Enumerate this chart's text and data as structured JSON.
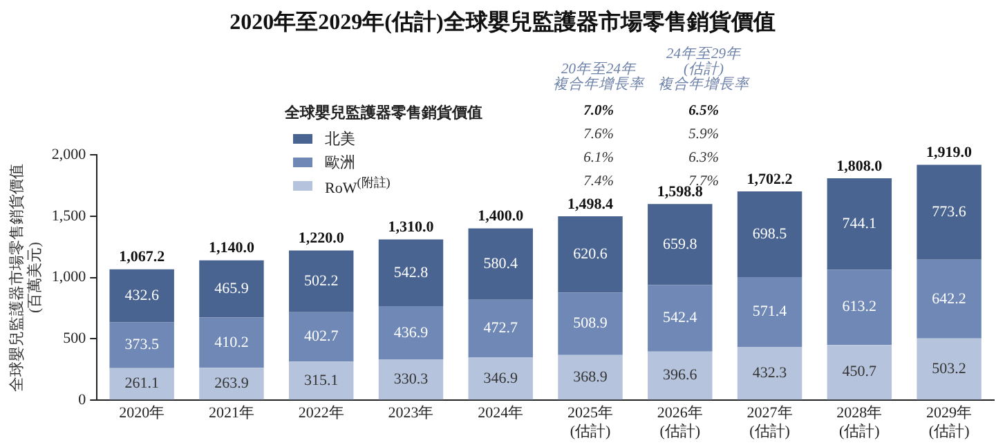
{
  "chart_data": {
    "type": "bar",
    "title": "2020年至2029年(估計)全球嬰兒監護器市場零售銷貨價值",
    "ylabel": "全球嬰兒監護器市場零售銷貨價值\n(百萬美元)",
    "legend_title": "全球嬰兒監護器零售銷貨價值",
    "categories": [
      "2020年",
      "2021年",
      "2022年",
      "2023年",
      "2024年",
      "2025年\n(估計)",
      "2026年\n(估計)",
      "2027年\n(估計)",
      "2028年\n(估計)",
      "2029年\n(估計)"
    ],
    "series": [
      {
        "name": "RoW$^{(附註)}$",
        "color": "#b5c3dc",
        "values": [
          261.1,
          263.9,
          315.1,
          330.3,
          346.9,
          368.9,
          396.6,
          432.3,
          450.7,
          503.2
        ]
      },
      {
        "name": "歐洲",
        "color": "#6f88b6",
        "values": [
          373.5,
          410.2,
          402.7,
          436.9,
          472.7,
          508.9,
          542.4,
          571.4,
          613.2,
          642.2
        ]
      },
      {
        "name": "北美",
        "color": "#4a6491",
        "values": [
          432.6,
          465.9,
          502.2,
          542.8,
          580.4,
          620.6,
          659.8,
          698.5,
          744.1,
          773.6
        ]
      }
    ],
    "stacked": true,
    "totals": [
      "1,067.2",
      "1,140.0",
      "1,220.0",
      "1,310.0",
      "1,400.0",
      "1,498.4",
      "1,598.8",
      "1,702.2",
      "1,808.0",
      "1,919.0"
    ],
    "data_labels": true,
    "ylim": [
      0,
      2000
    ],
    "yticks": [
      0,
      500,
      {
        "value": 1000,
        "label": "1,000"
      },
      {
        "value": 1500,
        "label": "1,500"
      },
      {
        "value": 2000,
        "label": "2,000"
      }
    ],
    "grid": false,
    "legend": "top",
    "annotations": [
      "20年至24年",
      "複合年增長率",
      "24年至29年",
      "(估計)",
      "複合年增長率",
      "7.0%",
      "6.5%",
      "7.6%",
      "5.9%",
      "6.1%",
      "6.3%",
      "7.4%",
      "7.7%"
    ]
  }
}
